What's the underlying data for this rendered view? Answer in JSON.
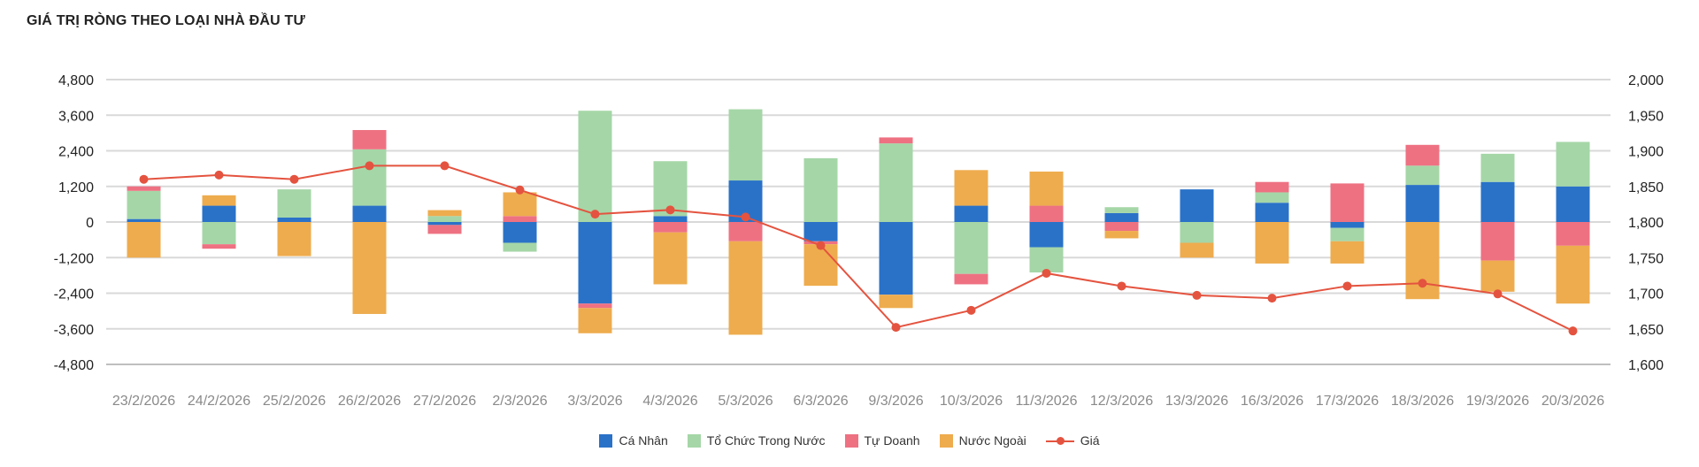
{
  "title": "GIÁ TRỊ RÒNG THEO LOẠI NHÀ ĐẦU TƯ",
  "colors": {
    "ca_nhan": "#2a72c8",
    "to_chuc": "#a5d6a7",
    "tu_doanh": "#ee7182",
    "nuoc_ngoai": "#eeac4e",
    "gia": "#e4533f",
    "grid": "#d9d9d9",
    "axis": "#bfbfbf"
  },
  "legend": [
    {
      "key": "ca_nhan",
      "label": "Cá Nhân",
      "kind": "bar"
    },
    {
      "key": "to_chuc",
      "label": "Tổ Chức Trong Nước",
      "kind": "bar"
    },
    {
      "key": "tu_doanh",
      "label": "Tự Doanh",
      "kind": "bar"
    },
    {
      "key": "nuoc_ngoai",
      "label": "Nước Ngoài",
      "kind": "bar"
    },
    {
      "key": "gia",
      "label": "Giá",
      "kind": "line"
    }
  ],
  "chart_data": {
    "type": "bar",
    "stacked": true,
    "categories": [
      "23/2/2026",
      "24/2/2026",
      "25/2/2026",
      "26/2/2026",
      "27/2/2026",
      "2/3/2026",
      "3/3/2026",
      "4/3/2026",
      "5/3/2026",
      "6/3/2026",
      "9/3/2026",
      "10/3/2026",
      "11/3/2026",
      "12/3/2026",
      "13/3/2026",
      "16/3/2026",
      "17/3/2026",
      "18/3/2026",
      "19/3/2026",
      "20/3/2026"
    ],
    "series": [
      {
        "key": "ca_nhan",
        "name": "Cá Nhân",
        "values": [
          100,
          550,
          150,
          550,
          -100,
          -700,
          -2750,
          200,
          1400,
          -650,
          -2450,
          550,
          -850,
          300,
          1100,
          650,
          -200,
          1250,
          1350,
          1200
        ]
      },
      {
        "key": "to_chuc",
        "name": "Tổ Chức Trong Nước",
        "values": [
          950,
          -750,
          950,
          1900,
          200,
          -300,
          3750,
          1850,
          2400,
          2150,
          2650,
          -1750,
          -850,
          200,
          -700,
          350,
          -450,
          650,
          950,
          1500
        ]
      },
      {
        "key": "tu_doanh",
        "name": "Tự Doanh",
        "values": [
          150,
          -150,
          0,
          650,
          -300,
          200,
          -150,
          -350,
          -650,
          -100,
          200,
          -350,
          550,
          -300,
          0,
          350,
          1300,
          700,
          -1300,
          -800
        ]
      },
      {
        "key": "nuoc_ngoai",
        "name": "Nước Ngoài",
        "values": [
          -1200,
          350,
          -1150,
          -3100,
          200,
          800,
          -850,
          -1750,
          -3150,
          -1400,
          -450,
          1200,
          1150,
          -250,
          -500,
          -1400,
          -750,
          -2600,
          -1050,
          -1950
        ]
      }
    ],
    "line": {
      "key": "gia",
      "name": "Giá",
      "values": [
        1860,
        1866,
        1860,
        1879,
        1879,
        1845,
        1811,
        1817,
        1807,
        1767,
        1652,
        1676,
        1728,
        1710,
        1697,
        1693,
        1710,
        1714,
        1699,
        1647
      ]
    },
    "y_left": {
      "min": -4800,
      "max": 4800,
      "ticks": [
        "4,800",
        "3,600",
        "2,400",
        "1,200",
        "0",
        "-1,200",
        "-2,400",
        "-3,600",
        "-4,800"
      ]
    },
    "y_right": {
      "min": 1600,
      "max": 2000,
      "ticks": [
        "2,000",
        "1,950",
        "1,900",
        "1,850",
        "1,800",
        "1,750",
        "1,700",
        "1,650",
        "1,600"
      ]
    },
    "grid": true,
    "legend_position": "bottom"
  }
}
